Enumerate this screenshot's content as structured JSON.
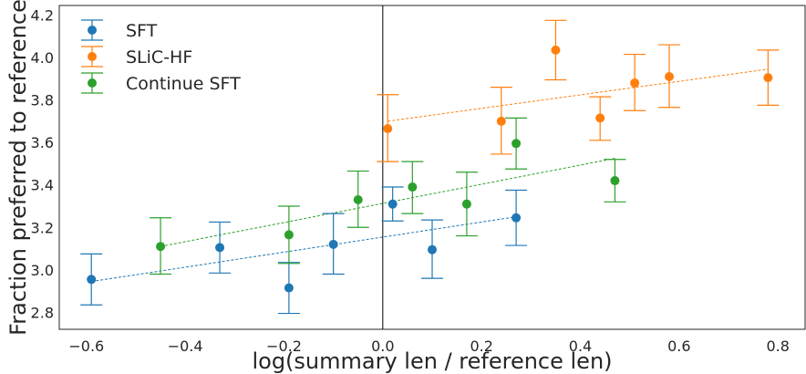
{
  "chart_data": {
    "type": "scatter",
    "title": "",
    "xlabel": "log(summary len / reference len)",
    "ylabel": "Fraction preferred to reference",
    "xlim": [
      -0.655,
      0.855
    ],
    "ylim": [
      2.72,
      4.245
    ],
    "xticks": [
      -0.6,
      -0.4,
      -0.2,
      0.0,
      0.2,
      0.4,
      0.6,
      0.8
    ],
    "xtick_labels": [
      "−0.6",
      "−0.4",
      "−0.2",
      "0.0",
      "0.2",
      "0.4",
      "0.6",
      "0.8"
    ],
    "yticks": [
      2.8,
      3.0,
      3.2,
      3.4,
      3.6,
      3.8,
      4.0,
      4.2
    ],
    "ytick_labels": [
      "2.8",
      "3.0",
      "3.2",
      "3.4",
      "3.6",
      "3.8",
      "4.0",
      "4.2"
    ],
    "grid": false,
    "vline_x": 0.0,
    "legend_position": "top-left",
    "series": [
      {
        "name": "SFT",
        "color": "#1f77b4",
        "points": [
          {
            "x": -0.59,
            "y": 2.955,
            "lo": 2.835,
            "hi": 3.075
          },
          {
            "x": -0.33,
            "y": 3.105,
            "lo": 2.985,
            "hi": 3.225
          },
          {
            "x": -0.19,
            "y": 2.915,
            "lo": 2.795,
            "hi": 3.035
          },
          {
            "x": -0.1,
            "y": 3.12,
            "lo": 2.98,
            "hi": 3.265
          },
          {
            "x": 0.02,
            "y": 3.31,
            "lo": 3.23,
            "hi": 3.39
          },
          {
            "x": 0.1,
            "y": 3.095,
            "lo": 2.96,
            "hi": 3.235
          },
          {
            "x": 0.27,
            "y": 3.245,
            "lo": 3.115,
            "hi": 3.375
          }
        ],
        "trend": {
          "x0": -0.59,
          "y0": 2.945,
          "x1": 0.27,
          "y1": 3.25
        }
      },
      {
        "name": "SLiC-HF",
        "color": "#ff7f0e",
        "points": [
          {
            "x": 0.01,
            "y": 3.665,
            "lo": 3.51,
            "hi": 3.825
          },
          {
            "x": 0.24,
            "y": 3.7,
            "lo": 3.545,
            "hi": 3.86
          },
          {
            "x": 0.35,
            "y": 4.035,
            "lo": 3.895,
            "hi": 4.175
          },
          {
            "x": 0.44,
            "y": 3.715,
            "lo": 3.61,
            "hi": 3.815
          },
          {
            "x": 0.51,
            "y": 3.88,
            "lo": 3.75,
            "hi": 4.015
          },
          {
            "x": 0.58,
            "y": 3.91,
            "lo": 3.765,
            "hi": 4.06
          },
          {
            "x": 0.78,
            "y": 3.905,
            "lo": 3.775,
            "hi": 4.035
          }
        ],
        "trend": {
          "x0": 0.01,
          "y0": 3.7,
          "x1": 0.78,
          "y1": 3.945
        }
      },
      {
        "name": "Continue SFT",
        "color": "#2ca02c",
        "points": [
          {
            "x": -0.45,
            "y": 3.11,
            "lo": 2.98,
            "hi": 3.245
          },
          {
            "x": -0.19,
            "y": 3.165,
            "lo": 3.03,
            "hi": 3.3
          },
          {
            "x": -0.05,
            "y": 3.33,
            "lo": 3.2,
            "hi": 3.465
          },
          {
            "x": 0.06,
            "y": 3.39,
            "lo": 3.265,
            "hi": 3.51
          },
          {
            "x": 0.17,
            "y": 3.31,
            "lo": 3.16,
            "hi": 3.46
          },
          {
            "x": 0.27,
            "y": 3.595,
            "lo": 3.475,
            "hi": 3.715
          },
          {
            "x": 0.47,
            "y": 3.42,
            "lo": 3.32,
            "hi": 3.52
          }
        ],
        "trend": {
          "x0": -0.45,
          "y0": 3.11,
          "x1": 0.47,
          "y1": 3.525
        }
      }
    ]
  }
}
